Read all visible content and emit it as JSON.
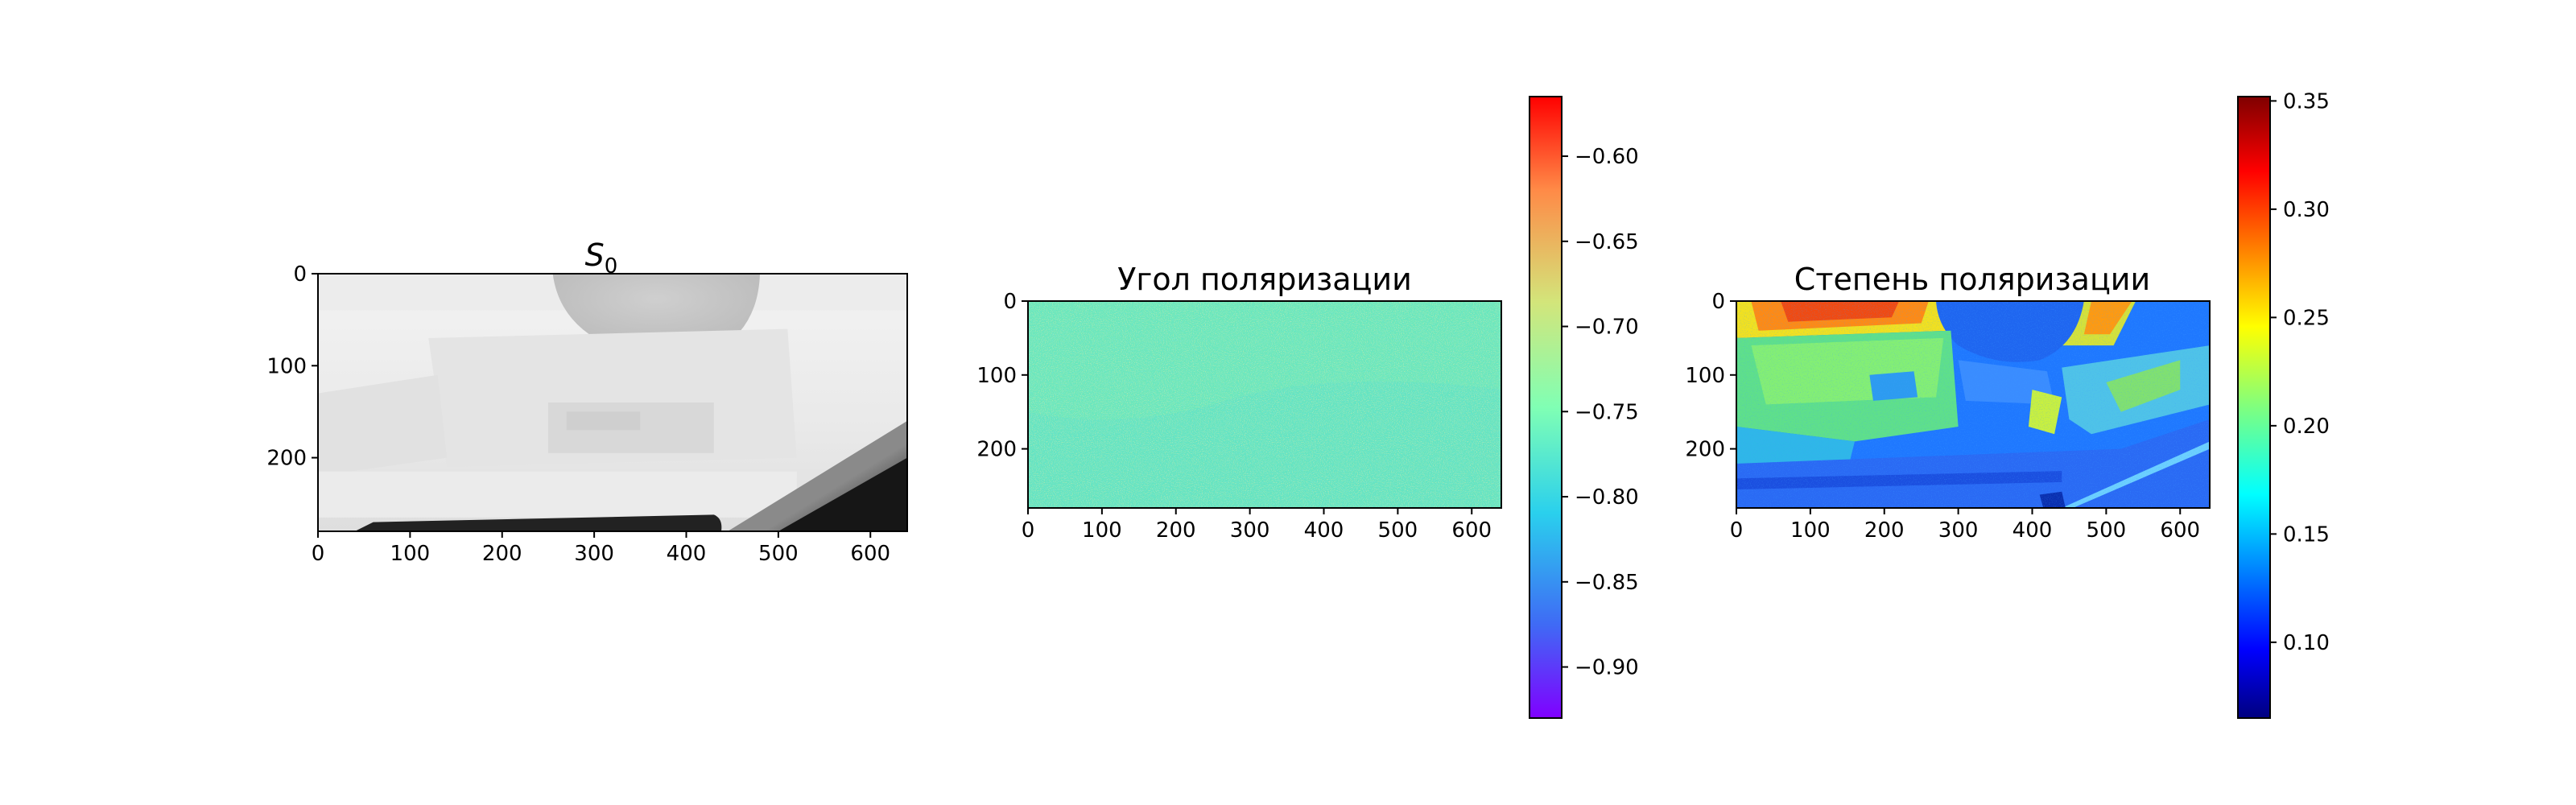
{
  "chart_data": [
    {
      "type": "heatmap",
      "title_base": "S",
      "title_sub": "0",
      "colormap": "gray",
      "xlim": [
        0,
        640
      ],
      "ylim": [
        280,
        0
      ],
      "xticks": [
        "0",
        "100",
        "200",
        "300",
        "400",
        "500",
        "600"
      ],
      "yticks": [
        "0",
        "100",
        "200"
      ],
      "xtick_values": [
        0,
        100,
        200,
        300,
        400,
        500,
        600
      ],
      "ytick_values": [
        0,
        100,
        200
      ],
      "colorbar": false
    },
    {
      "type": "heatmap",
      "title": "Угол поляризации",
      "colormap": "rainbow",
      "xlim": [
        0,
        640
      ],
      "ylim": [
        280,
        0
      ],
      "xticks": [
        "0",
        "100",
        "200",
        "300",
        "400",
        "500",
        "600"
      ],
      "yticks": [
        "0",
        "100",
        "200"
      ],
      "xtick_values": [
        0,
        100,
        200,
        300,
        400,
        500,
        600
      ],
      "ytick_values": [
        0,
        100,
        200
      ],
      "colorbar": true,
      "colorbar_range": [
        -0.93,
        -0.565
      ],
      "colorbar_ticks": [
        "−0.60",
        "−0.65",
        "−0.70",
        "−0.75",
        "−0.80",
        "−0.85",
        "−0.90"
      ],
      "colorbar_tick_values": [
        -0.6,
        -0.65,
        -0.7,
        -0.75,
        -0.8,
        -0.85,
        -0.9
      ],
      "typical_value": -0.76
    },
    {
      "type": "heatmap",
      "title": "Степень поляризации",
      "colormap": "jet",
      "xlim": [
        0,
        640
      ],
      "ylim": [
        280,
        0
      ],
      "xticks": [
        "0",
        "100",
        "200",
        "300",
        "400",
        "500",
        "600"
      ],
      "yticks": [
        "0",
        "100",
        "200"
      ],
      "xtick_values": [
        0,
        100,
        200,
        300,
        400,
        500,
        600
      ],
      "ytick_values": [
        0,
        100,
        200
      ],
      "colorbar": true,
      "colorbar_range": [
        0.065,
        0.352
      ],
      "colorbar_ticks": [
        "0.10",
        "0.15",
        "0.20",
        "0.25",
        "0.30",
        "0.35"
      ],
      "colorbar_tick_values": [
        0.1,
        0.15,
        0.2,
        0.25,
        0.3,
        0.35
      ]
    }
  ]
}
